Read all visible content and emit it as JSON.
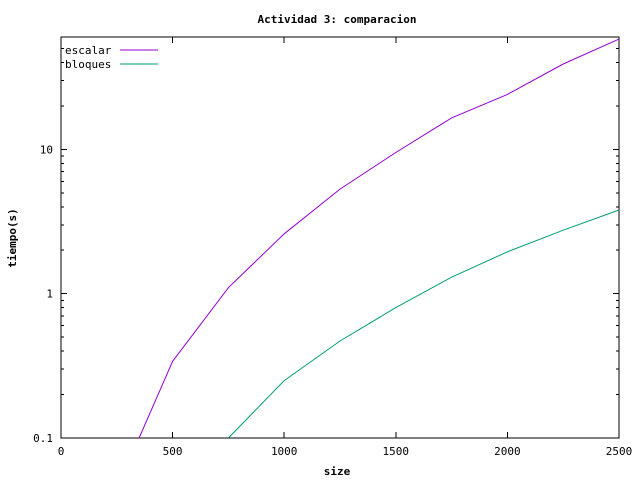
{
  "chart_data": {
    "type": "line",
    "title": "Actividad 3: comparacion",
    "xlabel": "size",
    "ylabel": "tiempo(s)",
    "xlim": [
      0,
      2500
    ],
    "ylim": [
      0.1,
      60
    ],
    "yscale": "log",
    "grid": false,
    "legend_position": "top-left",
    "x_ticks": [
      0,
      500,
      1000,
      1500,
      2000,
      2500
    ],
    "x_tick_labels": [
      "0",
      "500",
      "1000",
      "1500",
      "2000",
      "2500"
    ],
    "y_ticks": [
      0.1,
      1,
      10
    ],
    "y_tick_labels": [
      "0.1",
      "1",
      "10"
    ],
    "series": [
      {
        "name": "escalar",
        "color": "#9400d3",
        "x": [
          350,
          500,
          750,
          1000,
          1250,
          1500,
          1750,
          2000,
          2250,
          2500
        ],
        "y": [
          0.1,
          0.34,
          1.1,
          2.6,
          5.3,
          9.5,
          16.5,
          24,
          39,
          58
        ]
      },
      {
        "name": "bloques",
        "color": "#009e73",
        "x": [
          750,
          1000,
          1250,
          1500,
          1750,
          2000,
          2250,
          2500
        ],
        "y": [
          0.1,
          0.25,
          0.47,
          0.8,
          1.3,
          1.95,
          2.75,
          3.8
        ]
      }
    ]
  }
}
